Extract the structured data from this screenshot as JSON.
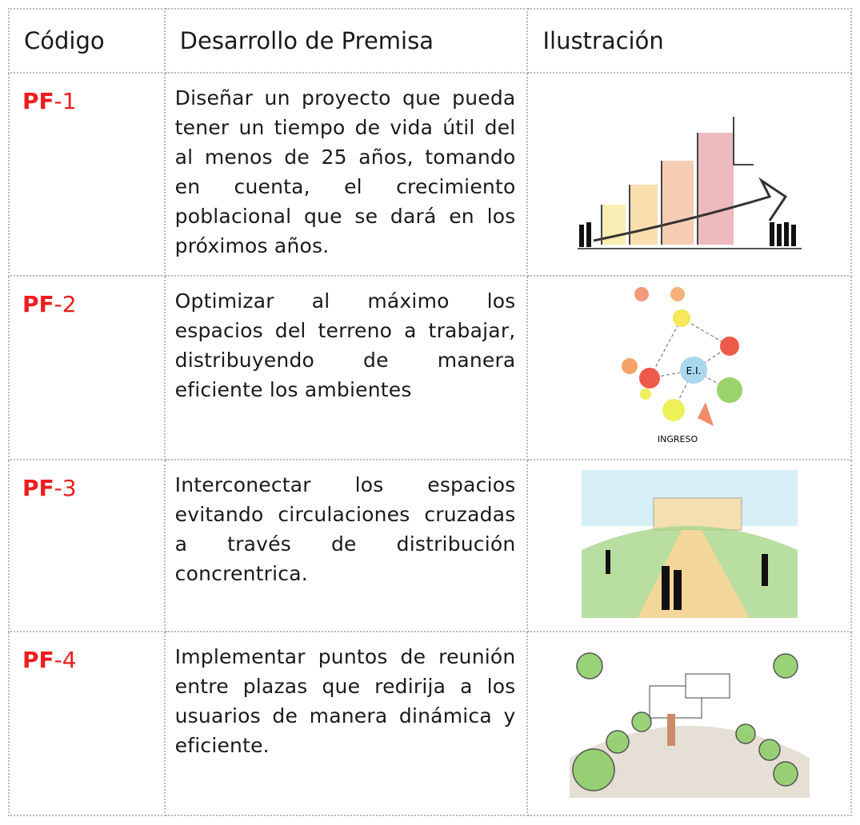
{
  "table": {
    "header": [
      "Código",
      "Desarrollo de Premisa",
      "Ilustración"
    ],
    "rows": [
      {
        "code_prefix": "PF",
        "code_suffix": "-1",
        "text": "Diseñar un proyecto que pueda tener un tiempo de vida útil del al menos de 25 años, tomando en cuenta, el crecimiento poblacional que se dará en los próximos años."
      },
      {
        "code_prefix": "PF",
        "code_suffix": "-2",
        "text": "Optimizar al máximo los espacios del terreno a trabajar, distribuyendo de manera eficiente los ambientes",
        "illustration_labels": [
          "E.I.",
          "INGRESO"
        ]
      },
      {
        "code_prefix": "PF",
        "code_suffix": "-3",
        "text": "Interconectar los espacios evitando circulaciones cruzadas a través de distribución concrentrica."
      },
      {
        "code_prefix": "PF",
        "code_suffix": "-4",
        "text": "Implementar puntos de reunión entre plazas que redirija a los usuarios de manera dinámica y eficiente."
      }
    ]
  }
}
